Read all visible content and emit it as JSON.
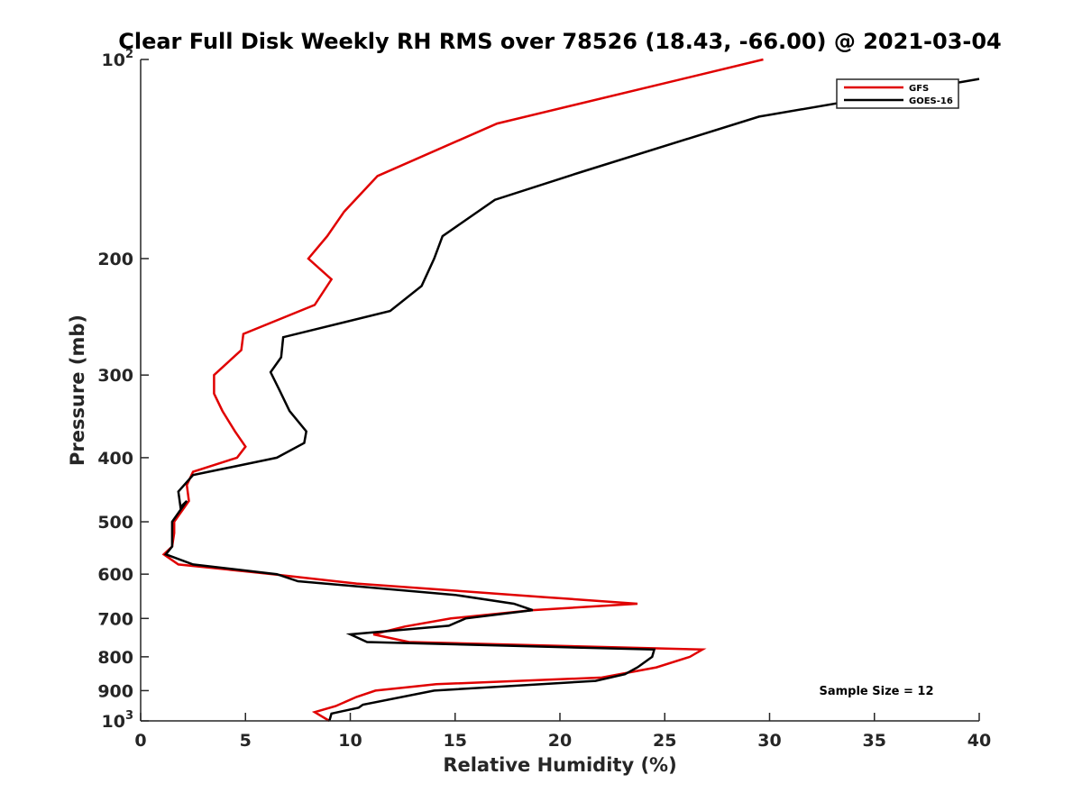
{
  "chart_data": {
    "type": "line",
    "title": "Clear Full Disk Weekly RH RMS over 78526 (18.43, -66.00) @ 2021-03-04",
    "xlabel": "Relative Humidity (%)",
    "ylabel": "Pressure (mb)",
    "xlim": [
      0,
      40
    ],
    "ylim": [
      100,
      1000
    ],
    "y_scale": "log",
    "y_reversed": true,
    "x_ticks": [
      0,
      5,
      10,
      15,
      20,
      25,
      30,
      35,
      40
    ],
    "x_tick_labels": [
      "0",
      "5",
      "10",
      "15",
      "20",
      "25",
      "30",
      "35",
      "40"
    ],
    "y_ticks": [
      100,
      200,
      300,
      400,
      500,
      600,
      700,
      800,
      900,
      1000
    ],
    "y_tick_labels": [
      {
        "base": "10",
        "exp": "2"
      },
      {
        "base": "200",
        "exp": ""
      },
      {
        "base": "300",
        "exp": ""
      },
      {
        "base": "400",
        "exp": ""
      },
      {
        "base": "500",
        "exp": ""
      },
      {
        "base": "600",
        "exp": ""
      },
      {
        "base": "700",
        "exp": ""
      },
      {
        "base": "800",
        "exp": ""
      },
      {
        "base": "900",
        "exp": ""
      },
      {
        "base": "10",
        "exp": "3"
      }
    ],
    "grid": false,
    "legend_position": "top-right",
    "annotation": "Sample Size = 12",
    "series": [
      {
        "name": "GFS",
        "color": "#e00000",
        "points": [
          [
            29.7,
            100
          ],
          [
            17.0,
            125
          ],
          [
            11.3,
            150
          ],
          [
            9.7,
            170
          ],
          [
            8.9,
            185
          ],
          [
            8.0,
            200
          ],
          [
            9.1,
            215
          ],
          [
            8.3,
            235
          ],
          [
            4.9,
            260
          ],
          [
            4.8,
            275
          ],
          [
            3.5,
            300
          ],
          [
            3.5,
            320
          ],
          [
            3.9,
            340
          ],
          [
            4.5,
            365
          ],
          [
            5.0,
            385
          ],
          [
            4.6,
            400
          ],
          [
            2.5,
            420
          ],
          [
            2.2,
            440
          ],
          [
            2.3,
            465
          ],
          [
            2.1,
            475
          ],
          [
            1.6,
            500
          ],
          [
            1.6,
            520
          ],
          [
            1.5,
            545
          ],
          [
            1.1,
            560
          ],
          [
            1.8,
            580
          ],
          [
            6.3,
            600
          ],
          [
            10.3,
            620
          ],
          [
            19.3,
            650
          ],
          [
            23.7,
            665
          ],
          [
            18.7,
            680
          ],
          [
            14.8,
            700
          ],
          [
            12.6,
            720
          ],
          [
            11.1,
            740
          ],
          [
            12.8,
            760
          ],
          [
            26.8,
            780
          ],
          [
            26.2,
            800
          ],
          [
            24.6,
            830
          ],
          [
            22.0,
            860
          ],
          [
            14.1,
            880
          ],
          [
            11.2,
            900
          ],
          [
            10.3,
            920
          ],
          [
            9.3,
            950
          ],
          [
            8.3,
            970
          ],
          [
            9.0,
            1000
          ]
        ]
      },
      {
        "name": "GOES-16",
        "color": "#000000",
        "points": [
          [
            40.0,
            107
          ],
          [
            29.5,
            122
          ],
          [
            21.0,
            148
          ],
          [
            16.9,
            163
          ],
          [
            14.4,
            185
          ],
          [
            14.0,
            200
          ],
          [
            13.4,
            220
          ],
          [
            11.9,
            240
          ],
          [
            6.8,
            263
          ],
          [
            6.7,
            282
          ],
          [
            6.2,
            297
          ],
          [
            6.6,
            315
          ],
          [
            7.1,
            340
          ],
          [
            7.9,
            365
          ],
          [
            7.8,
            380
          ],
          [
            6.5,
            400
          ],
          [
            2.5,
            425
          ],
          [
            1.8,
            450
          ],
          [
            1.9,
            475
          ],
          [
            2.2,
            465
          ],
          [
            1.5,
            500
          ],
          [
            1.5,
            525
          ],
          [
            1.5,
            545
          ],
          [
            1.2,
            560
          ],
          [
            2.5,
            580
          ],
          [
            6.5,
            600
          ],
          [
            7.5,
            615
          ],
          [
            15.0,
            645
          ],
          [
            17.8,
            665
          ],
          [
            18.7,
            680
          ],
          [
            15.5,
            700
          ],
          [
            14.7,
            718
          ],
          [
            10.0,
            740
          ],
          [
            10.8,
            760
          ],
          [
            24.5,
            780
          ],
          [
            24.4,
            800
          ],
          [
            23.7,
            830
          ],
          [
            23.1,
            850
          ],
          [
            21.7,
            870
          ],
          [
            14.0,
            900
          ],
          [
            10.6,
            945
          ],
          [
            10.4,
            955
          ],
          [
            9.1,
            975
          ],
          [
            9.0,
            1000
          ]
        ]
      }
    ]
  }
}
